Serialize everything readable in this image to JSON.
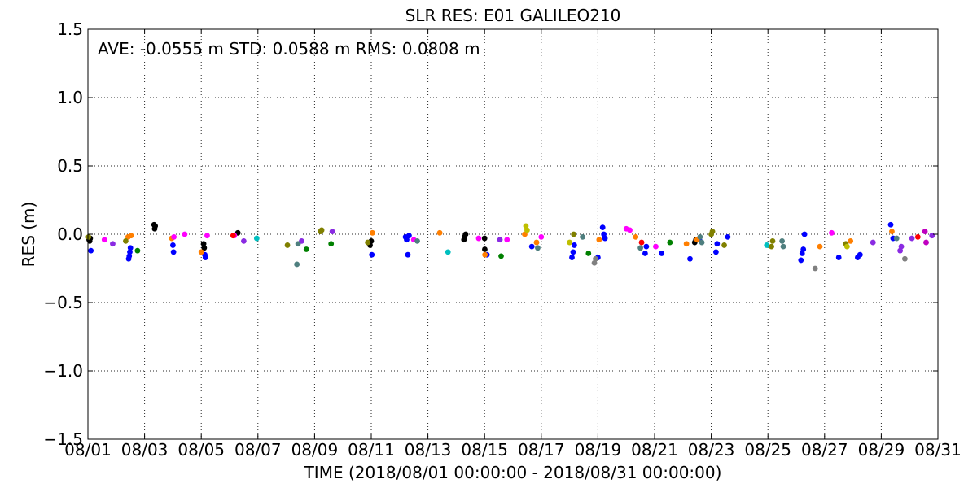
{
  "chart_data": {
    "type": "scatter",
    "title": "SLR RES: E01 GALILEO210",
    "stats_text": "AVE: -0.0555 m STD: 0.0588 m RMS: 0.0808 m",
    "xlabel": "TIME  (2018/08/01 00:00:00 - 2018/08/31 00:00:00)",
    "ylabel": "RES (m)",
    "xlim": [
      "2018-08-01",
      "2018-08-31"
    ],
    "ylim": [
      -1.5,
      1.5
    ],
    "x_ticks": [
      {
        "value": "2018-08-01",
        "label": "08/01"
      },
      {
        "value": "2018-08-03",
        "label": "08/03"
      },
      {
        "value": "2018-08-05",
        "label": "08/05"
      },
      {
        "value": "2018-08-07",
        "label": "08/07"
      },
      {
        "value": "2018-08-09",
        "label": "08/09"
      },
      {
        "value": "2018-08-11",
        "label": "08/11"
      },
      {
        "value": "2018-08-13",
        "label": "08/13"
      },
      {
        "value": "2018-08-15",
        "label": "08/15"
      },
      {
        "value": "2018-08-17",
        "label": "08/17"
      },
      {
        "value": "2018-08-19",
        "label": "08/19"
      },
      {
        "value": "2018-08-21",
        "label": "08/21"
      },
      {
        "value": "2018-08-23",
        "label": "08/23"
      },
      {
        "value": "2018-08-25",
        "label": "08/25"
      },
      {
        "value": "2018-08-27",
        "label": "08/27"
      },
      {
        "value": "2018-08-29",
        "label": "08/29"
      },
      {
        "value": "2018-08-31",
        "label": "08/31"
      }
    ],
    "y_ticks": [
      {
        "value": 1.5,
        "label": "1.5"
      },
      {
        "value": 1.0,
        "label": "1.0"
      },
      {
        "value": 0.5,
        "label": "0.5"
      },
      {
        "value": 0.0,
        "label": "0.0"
      },
      {
        "value": -0.5,
        "label": "−0.5"
      },
      {
        "value": -1.0,
        "label": "−1.0"
      },
      {
        "value": -1.5,
        "label": "−1.5"
      }
    ],
    "grid": true,
    "series": [
      {
        "color": "#000000",
        "points": [
          {
            "x": "2018-08-01 01:00",
            "y": -0.04
          },
          {
            "x": "2018-08-01 01:30",
            "y": -0.05
          },
          {
            "x": "2018-08-01 02:00",
            "y": -0.03
          },
          {
            "x": "2018-08-03 08:00",
            "y": 0.07
          },
          {
            "x": "2018-08-03 08:30",
            "y": 0.04
          },
          {
            "x": "2018-08-03 09:00",
            "y": 0.06
          },
          {
            "x": "2018-08-05 02:00",
            "y": -0.07
          },
          {
            "x": "2018-08-05 02:30",
            "y": -0.1
          },
          {
            "x": "2018-08-06 07:00",
            "y": 0.01
          },
          {
            "x": "2018-08-10 23:00",
            "y": -0.08
          },
          {
            "x": "2018-08-11 00:00",
            "y": -0.05
          },
          {
            "x": "2018-08-14 06:30",
            "y": -0.04
          },
          {
            "x": "2018-08-14 07:00",
            "y": -0.02
          },
          {
            "x": "2018-08-14 08:00",
            "y": 0.0
          },
          {
            "x": "2018-08-15 00:00",
            "y": -0.03
          },
          {
            "x": "2018-08-15 00:10",
            "y": -0.11
          },
          {
            "x": "2018-08-22 10:00",
            "y": -0.06
          },
          {
            "x": "2018-08-22 11:00",
            "y": -0.04
          }
        ]
      },
      {
        "color": "#0000ff",
        "points": [
          {
            "x": "2018-08-01 02:30",
            "y": -0.12
          },
          {
            "x": "2018-08-02 10:30",
            "y": -0.18
          },
          {
            "x": "2018-08-02 11:00",
            "y": -0.16
          },
          {
            "x": "2018-08-02 11:30",
            "y": -0.13
          },
          {
            "x": "2018-08-02 12:00",
            "y": -0.1
          },
          {
            "x": "2018-08-04 00:00",
            "y": -0.08
          },
          {
            "x": "2018-08-04 00:30",
            "y": -0.13
          },
          {
            "x": "2018-08-05 03:00",
            "y": -0.15
          },
          {
            "x": "2018-08-05 03:30",
            "y": -0.17
          },
          {
            "x": "2018-08-11 00:30",
            "y": -0.15
          },
          {
            "x": "2018-08-12 05:00",
            "y": -0.02
          },
          {
            "x": "2018-08-12 06:00",
            "y": -0.04
          },
          {
            "x": "2018-08-12 07:00",
            "y": -0.15
          },
          {
            "x": "2018-08-12 08:00",
            "y": -0.01
          },
          {
            "x": "2018-08-15 02:00",
            "y": -0.15
          },
          {
            "x": "2018-08-16 16:00",
            "y": -0.09
          },
          {
            "x": "2018-08-18 02:00",
            "y": -0.17
          },
          {
            "x": "2018-08-18 03:00",
            "y": -0.13
          },
          {
            "x": "2018-08-18 04:00",
            "y": -0.08
          },
          {
            "x": "2018-08-19 00:00",
            "y": -0.17
          },
          {
            "x": "2018-08-19 04:00",
            "y": 0.05
          },
          {
            "x": "2018-08-19 05:00",
            "y": 0.0
          },
          {
            "x": "2018-08-19 06:00",
            "y": -0.03
          },
          {
            "x": "2018-08-20 16:00",
            "y": -0.14
          },
          {
            "x": "2018-08-20 17:00",
            "y": -0.09
          },
          {
            "x": "2018-08-21 06:00",
            "y": -0.14
          },
          {
            "x": "2018-08-22 06:00",
            "y": -0.18
          },
          {
            "x": "2018-08-22 14:00",
            "y": -0.04
          },
          {
            "x": "2018-08-23 04:00",
            "y": -0.13
          },
          {
            "x": "2018-08-23 05:00",
            "y": -0.07
          },
          {
            "x": "2018-08-23 14:00",
            "y": -0.02
          },
          {
            "x": "2018-08-26 04:00",
            "y": -0.19
          },
          {
            "x": "2018-08-26 05:00",
            "y": -0.14
          },
          {
            "x": "2018-08-26 06:00",
            "y": -0.11
          },
          {
            "x": "2018-08-26 07:00",
            "y": 0.0
          },
          {
            "x": "2018-08-27 12:00",
            "y": -0.17
          },
          {
            "x": "2018-08-28 04:00",
            "y": -0.17
          },
          {
            "x": "2018-08-28 06:00",
            "y": -0.15
          },
          {
            "x": "2018-08-29 08:00",
            "y": 0.07
          },
          {
            "x": "2018-08-29 10:00",
            "y": -0.03
          }
        ]
      },
      {
        "color": "#ff7f00",
        "points": [
          {
            "x": "2018-08-02 10:00",
            "y": -0.02
          },
          {
            "x": "2018-08-02 12:30",
            "y": -0.01
          },
          {
            "x": "2018-08-03 23:00",
            "y": -0.03
          },
          {
            "x": "2018-08-05 00:00",
            "y": -0.13
          },
          {
            "x": "2018-08-11 01:00",
            "y": 0.01
          },
          {
            "x": "2018-08-13 10:00",
            "y": 0.01
          },
          {
            "x": "2018-08-15 00:20",
            "y": -0.15
          },
          {
            "x": "2018-08-16 10:00",
            "y": 0.0
          },
          {
            "x": "2018-08-16 20:00",
            "y": -0.06
          },
          {
            "x": "2018-08-19 01:00",
            "y": -0.04
          },
          {
            "x": "2018-08-20 08:00",
            "y": -0.02
          },
          {
            "x": "2018-08-22 03:00",
            "y": -0.07
          },
          {
            "x": "2018-08-22 12:00",
            "y": -0.04
          },
          {
            "x": "2018-08-26 20:00",
            "y": -0.09
          },
          {
            "x": "2018-08-27 22:00",
            "y": -0.05
          },
          {
            "x": "2018-08-29 09:00",
            "y": 0.02
          }
        ]
      },
      {
        "color": "#ff00ff",
        "points": [
          {
            "x": "2018-08-01 14:00",
            "y": -0.04
          },
          {
            "x": "2018-08-04 00:50",
            "y": -0.02
          },
          {
            "x": "2018-08-04 10:00",
            "y": 0.0
          },
          {
            "x": "2018-08-05 05:00",
            "y": -0.01
          },
          {
            "x": "2018-08-06 04:00",
            "y": -0.01
          },
          {
            "x": "2018-08-12 12:00",
            "y": -0.04
          },
          {
            "x": "2018-08-14 19:00",
            "y": -0.03
          },
          {
            "x": "2018-08-15 19:00",
            "y": -0.04
          },
          {
            "x": "2018-08-17 00:00",
            "y": -0.02
          },
          {
            "x": "2018-08-20 00:00",
            "y": 0.04
          },
          {
            "x": "2018-08-20 03:00",
            "y": 0.03
          },
          {
            "x": "2018-08-21 01:00",
            "y": -0.09
          },
          {
            "x": "2018-08-27 06:00",
            "y": 0.01
          }
        ]
      },
      {
        "color": "#8a2be2",
        "points": [
          {
            "x": "2018-08-01 21:00",
            "y": -0.07
          },
          {
            "x": "2018-08-06 12:00",
            "y": -0.05
          },
          {
            "x": "2018-08-08 13:00",
            "y": -0.05
          },
          {
            "x": "2018-08-09 15:00",
            "y": 0.02
          },
          {
            "x": "2018-08-15 13:00",
            "y": -0.04
          },
          {
            "x": "2018-08-28 17:00",
            "y": -0.06
          },
          {
            "x": "2018-08-29 16:00",
            "y": -0.12
          },
          {
            "x": "2018-08-29 17:00",
            "y": -0.09
          },
          {
            "x": "2018-08-30 02:00",
            "y": -0.03
          },
          {
            "x": "2018-08-30 19:00",
            "y": -0.01
          }
        ]
      },
      {
        "color": "#c000c0",
        "points": [
          {
            "x": "2018-08-30 13:00",
            "y": 0.02
          },
          {
            "x": "2018-08-30 14:00",
            "y": -0.06
          }
        ]
      },
      {
        "color": "#ff0000",
        "points": [
          {
            "x": "2018-08-06 03:00",
            "y": -0.01
          },
          {
            "x": "2018-08-20 13:00",
            "y": -0.06
          },
          {
            "x": "2018-08-30 07:00",
            "y": -0.02
          }
        ]
      },
      {
        "color": "#00bfbf",
        "points": [
          {
            "x": "2018-08-06 23:00",
            "y": -0.03
          },
          {
            "x": "2018-08-13 17:00",
            "y": -0.13
          },
          {
            "x": "2018-08-24 23:00",
            "y": -0.08
          }
        ]
      },
      {
        "color": "#808000",
        "points": [
          {
            "x": "2018-08-01 00:30",
            "y": -0.02
          },
          {
            "x": "2018-08-02 08:00",
            "y": -0.05
          },
          {
            "x": "2018-08-08 01:00",
            "y": -0.08
          },
          {
            "x": "2018-08-09 05:00",
            "y": 0.02
          },
          {
            "x": "2018-08-09 06:00",
            "y": 0.03
          },
          {
            "x": "2018-08-10 21:00",
            "y": -0.06
          },
          {
            "x": "2018-08-18 03:30",
            "y": 0.0
          },
          {
            "x": "2018-08-23 00:00",
            "y": 0.0
          },
          {
            "x": "2018-08-23 01:00",
            "y": 0.02
          },
          {
            "x": "2018-08-23 11:00",
            "y": -0.08
          },
          {
            "x": "2018-08-25 03:00",
            "y": -0.09
          },
          {
            "x": "2018-08-25 04:00",
            "y": -0.05
          },
          {
            "x": "2018-08-27 18:00",
            "y": -0.07
          }
        ]
      },
      {
        "color": "#bfbf00",
        "points": [
          {
            "x": "2018-08-16 11:00",
            "y": 0.06
          },
          {
            "x": "2018-08-16 12:00",
            "y": 0.03
          },
          {
            "x": "2018-08-18 00:00",
            "y": -0.06
          },
          {
            "x": "2018-08-27 19:00",
            "y": -0.09
          }
        ]
      },
      {
        "color": "#008000",
        "points": [
          {
            "x": "2018-08-02 18:00",
            "y": -0.12
          },
          {
            "x": "2018-08-08 17:00",
            "y": -0.11
          },
          {
            "x": "2018-08-09 14:00",
            "y": -0.07
          },
          {
            "x": "2018-08-15 14:00",
            "y": -0.16
          },
          {
            "x": "2018-08-18 16:00",
            "y": -0.14
          },
          {
            "x": "2018-08-21 13:00",
            "y": -0.06
          }
        ]
      },
      {
        "color": "#4f7f7f",
        "points": [
          {
            "x": "2018-08-08 09:00",
            "y": -0.22
          },
          {
            "x": "2018-08-08 10:00",
            "y": -0.07
          },
          {
            "x": "2018-08-12 15:00",
            "y": -0.05
          },
          {
            "x": "2018-08-16 21:00",
            "y": -0.1
          },
          {
            "x": "2018-08-18 11:00",
            "y": -0.02
          },
          {
            "x": "2018-08-20 12:00",
            "y": -0.1
          },
          {
            "x": "2018-08-22 14:30",
            "y": -0.02
          },
          {
            "x": "2018-08-22 16:00",
            "y": -0.06
          },
          {
            "x": "2018-08-25 12:00",
            "y": -0.05
          },
          {
            "x": "2018-08-25 13:00",
            "y": -0.09
          },
          {
            "x": "2018-08-29 13:00",
            "y": -0.03
          }
        ]
      },
      {
        "color": "#808080",
        "points": [
          {
            "x": "2018-08-18 21:00",
            "y": -0.21
          },
          {
            "x": "2018-08-18 22:00",
            "y": -0.18
          },
          {
            "x": "2018-08-26 16:00",
            "y": -0.25
          },
          {
            "x": "2018-08-29 20:00",
            "y": -0.18
          }
        ]
      }
    ]
  }
}
